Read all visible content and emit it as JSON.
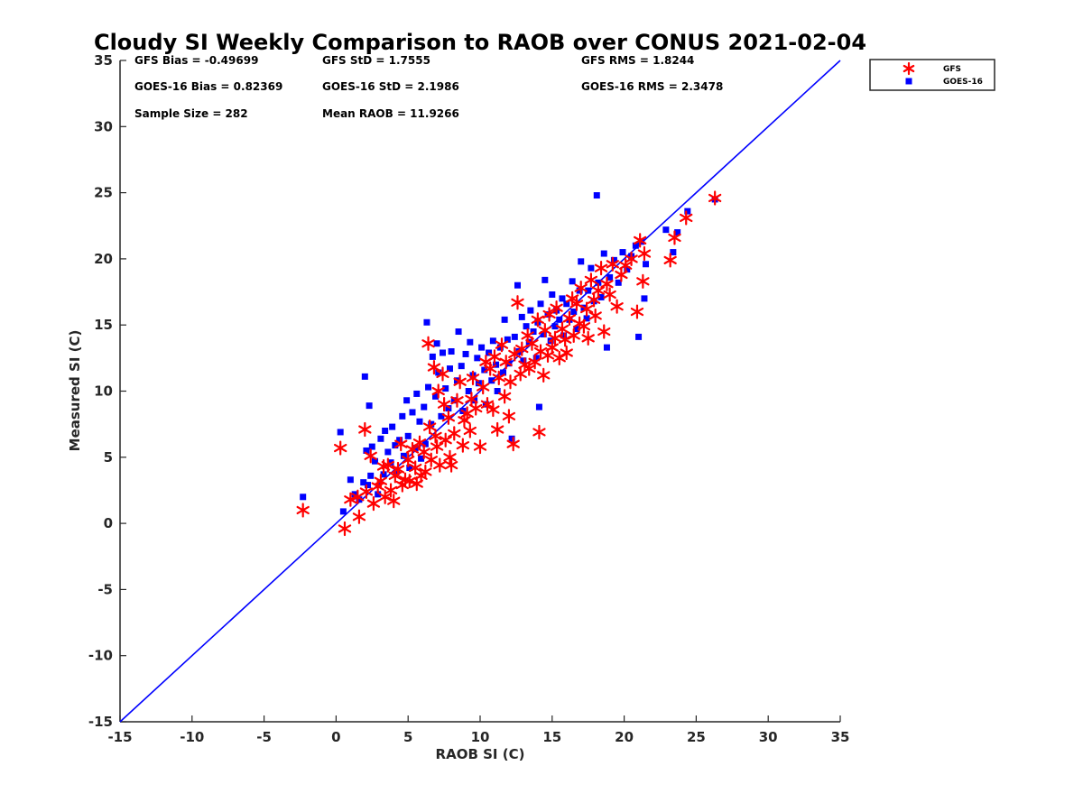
{
  "chart_data": {
    "type": "scatter",
    "title": "Cloudy SI Weekly Comparison to RAOB over CONUS 2021-02-04",
    "xlabel": "RAOB SI (C)",
    "ylabel": "Measured SI (C)",
    "xlim": [
      -15,
      35
    ],
    "ylim": [
      -15,
      35
    ],
    "xticks": [
      "-15",
      "-10",
      "-5",
      "0",
      "5",
      "10",
      "15",
      "20",
      "25",
      "30",
      "35"
    ],
    "yticks": [
      "-15",
      "-10",
      "-5",
      "0",
      "5",
      "10",
      "15",
      "20",
      "25",
      "30",
      "35"
    ],
    "grid": false,
    "legend_position": "outside-top-right",
    "reference_line": {
      "from": [
        -15,
        -15
      ],
      "to": [
        35,
        35
      ],
      "color": "#0000ff"
    },
    "stats": [
      "GFS Bias = -0.49699",
      "GFS StD = 1.7555",
      "GFS RMS = 1.8244",
      "GOES-16 Bias = 0.82369",
      "GOES-16 StD = 2.1986",
      "GOES-16 RMS = 2.3478",
      "Sample Size = 282",
      "Mean RAOB = 11.9266"
    ],
    "series": [
      {
        "name": "GFS",
        "marker": "asterisk",
        "color": "#ff0000",
        "points": [
          [
            -2.3,
            1.0
          ],
          [
            0.3,
            5.7
          ],
          [
            0.6,
            -0.4
          ],
          [
            1.0,
            1.8
          ],
          [
            1.5,
            2.0
          ],
          [
            1.6,
            0.5
          ],
          [
            2.0,
            7.1
          ],
          [
            2.1,
            2.4
          ],
          [
            2.4,
            5.1
          ],
          [
            2.6,
            1.5
          ],
          [
            2.9,
            2.8
          ],
          [
            3.1,
            3.2
          ],
          [
            3.3,
            4.3
          ],
          [
            3.4,
            2.0
          ],
          [
            3.6,
            4.4
          ],
          [
            3.8,
            2.5
          ],
          [
            4.0,
            1.7
          ],
          [
            4.1,
            3.6
          ],
          [
            4.3,
            4.1
          ],
          [
            4.5,
            6.0
          ],
          [
            4.6,
            2.9
          ],
          [
            4.8,
            3.3
          ],
          [
            5.0,
            4.8
          ],
          [
            5.1,
            3.2
          ],
          [
            5.3,
            5.6
          ],
          [
            5.5,
            4.2
          ],
          [
            5.6,
            3.0
          ],
          [
            5.8,
            6.1
          ],
          [
            5.9,
            3.6
          ],
          [
            6.1,
            5.4
          ],
          [
            6.2,
            3.9
          ],
          [
            6.4,
            13.6
          ],
          [
            6.5,
            7.3
          ],
          [
            6.6,
            4.8
          ],
          [
            6.8,
            11.8
          ],
          [
            6.9,
            6.6
          ],
          [
            7.0,
            5.8
          ],
          [
            7.1,
            10.0
          ],
          [
            7.2,
            4.4
          ],
          [
            7.4,
            11.3
          ],
          [
            7.5,
            9.0
          ],
          [
            7.6,
            6.3
          ],
          [
            7.8,
            8.0
          ],
          [
            7.9,
            5.0
          ],
          [
            8.0,
            4.4
          ],
          [
            8.2,
            6.8
          ],
          [
            8.4,
            9.3
          ],
          [
            8.6,
            10.7
          ],
          [
            8.8,
            5.9
          ],
          [
            8.9,
            7.8
          ],
          [
            9.1,
            8.3
          ],
          [
            9.3,
            7.0
          ],
          [
            9.4,
            9.4
          ],
          [
            9.5,
            11.0
          ],
          [
            9.7,
            8.7
          ],
          [
            10.0,
            5.8
          ],
          [
            10.2,
            10.3
          ],
          [
            10.4,
            12.2
          ],
          [
            10.5,
            9.0
          ],
          [
            10.7,
            11.7
          ],
          [
            10.9,
            8.6
          ],
          [
            11.0,
            12.6
          ],
          [
            11.2,
            7.1
          ],
          [
            11.3,
            11.0
          ],
          [
            11.5,
            13.5
          ],
          [
            11.7,
            9.6
          ],
          [
            11.8,
            12.2
          ],
          [
            12.0,
            8.1
          ],
          [
            12.1,
            10.7
          ],
          [
            12.3,
            6.0
          ],
          [
            12.4,
            12.8
          ],
          [
            12.6,
            16.7
          ],
          [
            12.8,
            11.3
          ],
          [
            12.9,
            13.2
          ],
          [
            13.1,
            12.0
          ],
          [
            13.3,
            14.2
          ],
          [
            13.4,
            11.7
          ],
          [
            13.6,
            13.6
          ],
          [
            13.8,
            12.2
          ],
          [
            14.0,
            15.4
          ],
          [
            14.1,
            6.9
          ],
          [
            14.2,
            13.0
          ],
          [
            14.4,
            11.2
          ],
          [
            14.5,
            14.6
          ],
          [
            14.7,
            12.7
          ],
          [
            14.8,
            15.8
          ],
          [
            15.0,
            13.3
          ],
          [
            15.2,
            14.0
          ],
          [
            15.3,
            16.3
          ],
          [
            15.5,
            12.5
          ],
          [
            15.7,
            14.7
          ],
          [
            15.9,
            13.9
          ],
          [
            16.0,
            12.9
          ],
          [
            16.2,
            15.5
          ],
          [
            16.4,
            17.0
          ],
          [
            16.5,
            14.2
          ],
          [
            16.7,
            16.6
          ],
          [
            16.9,
            15.1
          ],
          [
            17.0,
            17.8
          ],
          [
            17.2,
            14.9
          ],
          [
            17.4,
            16.2
          ],
          [
            17.5,
            14.0
          ],
          [
            17.7,
            18.4
          ],
          [
            17.9,
            16.9
          ],
          [
            18.0,
            15.7
          ],
          [
            18.2,
            17.6
          ],
          [
            18.4,
            19.3
          ],
          [
            18.6,
            14.5
          ],
          [
            18.8,
            18.1
          ],
          [
            19.0,
            17.3
          ],
          [
            19.2,
            19.6
          ],
          [
            19.5,
            16.4
          ],
          [
            19.8,
            18.8
          ],
          [
            20.1,
            19.5
          ],
          [
            20.5,
            20.0
          ],
          [
            20.9,
            16.0
          ],
          [
            21.1,
            21.4
          ],
          [
            21.3,
            18.3
          ],
          [
            21.4,
            20.4
          ],
          [
            23.2,
            19.9
          ],
          [
            23.5,
            21.6
          ],
          [
            24.3,
            23.1
          ],
          [
            26.3,
            24.6
          ]
        ]
      },
      {
        "name": "GOES-16",
        "marker": "square",
        "color": "#0000ff",
        "points": [
          [
            -2.3,
            2.0
          ],
          [
            0.3,
            6.9
          ],
          [
            0.5,
            0.9
          ],
          [
            1.0,
            3.3
          ],
          [
            1.3,
            2.2
          ],
          [
            1.6,
            1.8
          ],
          [
            1.9,
            3.1
          ],
          [
            2.0,
            11.1
          ],
          [
            2.1,
            5.5
          ],
          [
            2.2,
            2.9
          ],
          [
            2.3,
            8.9
          ],
          [
            2.4,
            3.6
          ],
          [
            2.5,
            5.8
          ],
          [
            2.7,
            4.7
          ],
          [
            2.9,
            2.2
          ],
          [
            3.1,
            6.4
          ],
          [
            3.3,
            3.7
          ],
          [
            3.4,
            7.0
          ],
          [
            3.6,
            5.4
          ],
          [
            3.8,
            4.6
          ],
          [
            3.9,
            7.3
          ],
          [
            4.1,
            5.9
          ],
          [
            4.2,
            3.9
          ],
          [
            4.4,
            6.3
          ],
          [
            4.6,
            8.1
          ],
          [
            4.7,
            5.1
          ],
          [
            4.9,
            9.3
          ],
          [
            5.0,
            6.6
          ],
          [
            5.1,
            4.2
          ],
          [
            5.3,
            8.4
          ],
          [
            5.5,
            5.7
          ],
          [
            5.6,
            9.8
          ],
          [
            5.8,
            7.7
          ],
          [
            5.9,
            4.9
          ],
          [
            6.1,
            8.8
          ],
          [
            6.2,
            6.0
          ],
          [
            6.3,
            15.2
          ],
          [
            6.4,
            10.3
          ],
          [
            6.6,
            7.5
          ],
          [
            6.7,
            12.6
          ],
          [
            6.9,
            9.6
          ],
          [
            7.0,
            13.6
          ],
          [
            7.1,
            11.4
          ],
          [
            7.3,
            8.1
          ],
          [
            7.4,
            12.9
          ],
          [
            7.6,
            10.2
          ],
          [
            7.8,
            8.7
          ],
          [
            7.9,
            11.7
          ],
          [
            8.0,
            13.0
          ],
          [
            8.2,
            9.3
          ],
          [
            8.4,
            10.8
          ],
          [
            8.5,
            14.5
          ],
          [
            8.7,
            11.9
          ],
          [
            8.8,
            8.5
          ],
          [
            9.0,
            12.8
          ],
          [
            9.2,
            10.0
          ],
          [
            9.3,
            13.7
          ],
          [
            9.5,
            11.2
          ],
          [
            9.6,
            9.3
          ],
          [
            9.8,
            12.5
          ],
          [
            9.9,
            10.6
          ],
          [
            10.1,
            13.3
          ],
          [
            10.3,
            11.6
          ],
          [
            10.4,
            9.0
          ],
          [
            10.6,
            12.9
          ],
          [
            10.8,
            10.8
          ],
          [
            10.9,
            13.8
          ],
          [
            11.1,
            12.0
          ],
          [
            11.2,
            10.0
          ],
          [
            11.4,
            13.3
          ],
          [
            11.6,
            11.4
          ],
          [
            11.7,
            15.4
          ],
          [
            11.9,
            13.9
          ],
          [
            12.0,
            12.1
          ],
          [
            12.2,
            6.4
          ],
          [
            12.4,
            14.1
          ],
          [
            12.6,
            18.0
          ],
          [
            12.7,
            13.0
          ],
          [
            12.9,
            15.6
          ],
          [
            13.0,
            12.3
          ],
          [
            13.2,
            14.9
          ],
          [
            13.4,
            13.7
          ],
          [
            13.5,
            16.1
          ],
          [
            13.7,
            14.5
          ],
          [
            13.9,
            12.5
          ],
          [
            14.0,
            15.2
          ],
          [
            14.1,
            8.8
          ],
          [
            14.2,
            16.6
          ],
          [
            14.4,
            14.3
          ],
          [
            14.5,
            18.4
          ],
          [
            14.7,
            15.8
          ],
          [
            14.9,
            13.8
          ],
          [
            15.0,
            17.3
          ],
          [
            15.2,
            14.9
          ],
          [
            15.3,
            16.1
          ],
          [
            15.5,
            15.4
          ],
          [
            15.7,
            17.0
          ],
          [
            15.8,
            14.2
          ],
          [
            16.0,
            16.6
          ],
          [
            16.2,
            15.4
          ],
          [
            16.4,
            18.3
          ],
          [
            16.5,
            16.0
          ],
          [
            16.7,
            14.7
          ],
          [
            16.9,
            17.6
          ],
          [
            17.0,
            19.8
          ],
          [
            17.2,
            16.3
          ],
          [
            17.4,
            15.5
          ],
          [
            17.5,
            17.6
          ],
          [
            17.7,
            19.3
          ],
          [
            17.9,
            16.8
          ],
          [
            18.1,
            24.8
          ],
          [
            18.2,
            18.2
          ],
          [
            18.4,
            17.1
          ],
          [
            18.6,
            20.4
          ],
          [
            18.8,
            13.3
          ],
          [
            19.0,
            18.6
          ],
          [
            19.3,
            19.9
          ],
          [
            19.6,
            18.2
          ],
          [
            19.9,
            20.5
          ],
          [
            20.2,
            19.2
          ],
          [
            20.5,
            20.2
          ],
          [
            20.8,
            21.0
          ],
          [
            21.0,
            14.1
          ],
          [
            21.2,
            21.3
          ],
          [
            21.4,
            17.0
          ],
          [
            21.5,
            19.6
          ],
          [
            22.9,
            22.2
          ],
          [
            23.4,
            20.5
          ],
          [
            23.7,
            22.0
          ],
          [
            24.4,
            23.6
          ],
          [
            26.3,
            24.5
          ]
        ]
      }
    ]
  }
}
